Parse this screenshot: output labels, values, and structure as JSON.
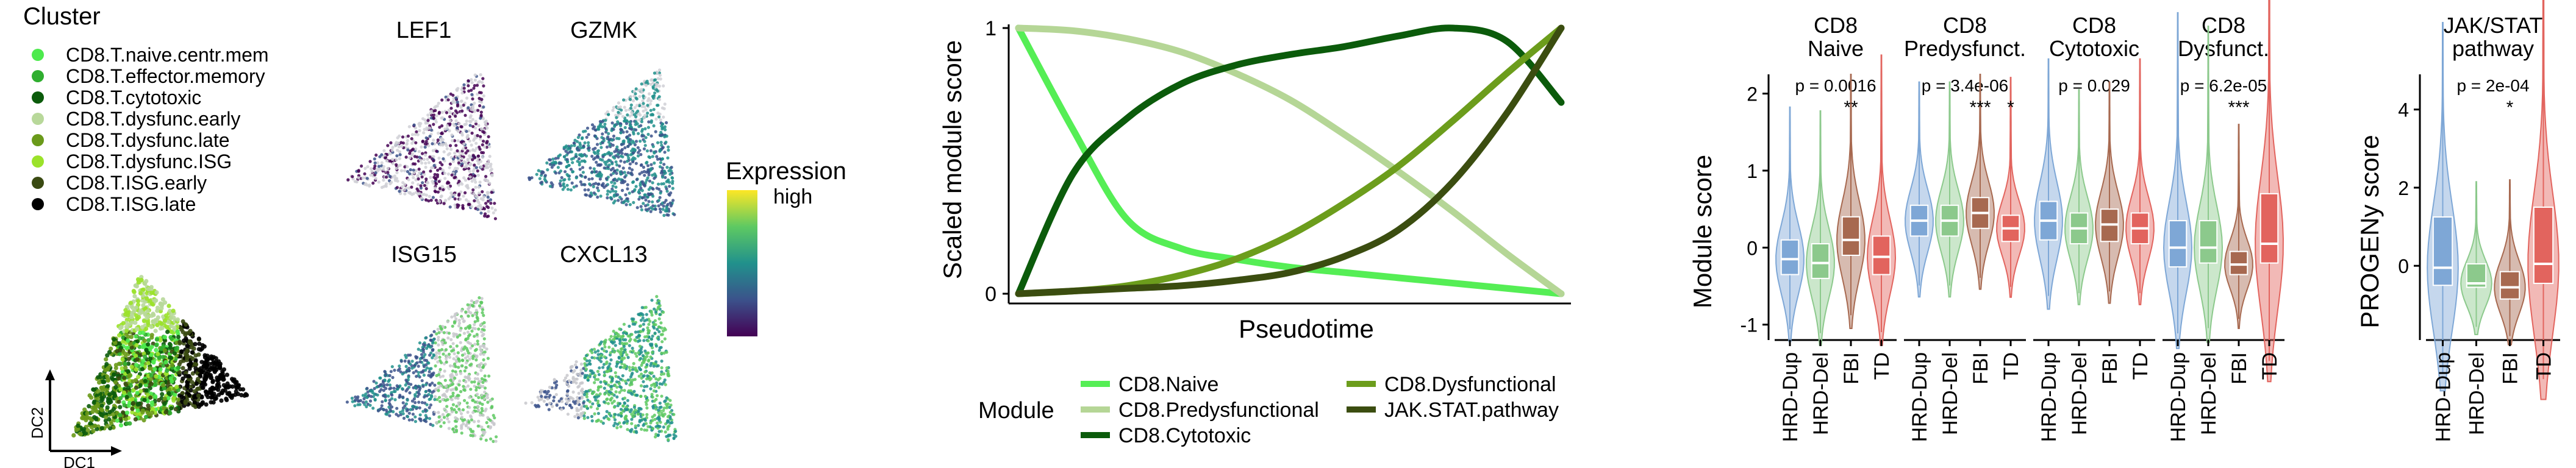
{
  "chart_data": [
    {
      "type": "scatter",
      "panel": "diffusion-map",
      "xlabel": "DC1",
      "ylabel": "DC2",
      "legend": {
        "title": "Cluster",
        "position": "top-left",
        "items": [
          {
            "label": "CD8.T.naive.centr.mem",
            "color": "#4dea4d"
          },
          {
            "label": "CD8.T.effector.memory",
            "color": "#2fae2f"
          },
          {
            "label": "CD8.T.cytotoxic",
            "color": "#0b5b0b"
          },
          {
            "label": "CD8.T.dysfunc.early",
            "color": "#b8d89a"
          },
          {
            "label": "CD8.T.dysfunc.late",
            "color": "#6a9a1a"
          },
          {
            "label": "CD8.T.dysfunc.ISG",
            "color": "#9be22a"
          },
          {
            "label": "CD8.T.ISG.early",
            "color": "#3a4a12"
          },
          {
            "label": "CD8.T.ISG.late",
            "color": "#000000"
          }
        ]
      }
    },
    {
      "type": "scatter",
      "panel": "feature-expression",
      "genes": [
        "LEF1",
        "GZMK",
        "ISG15",
        "CXCL13"
      ],
      "colorbar": {
        "title": "Expression",
        "high_label": "high",
        "colors": [
          "#440154",
          "#3b528b",
          "#21918c",
          "#5ec962",
          "#fde725"
        ]
      }
    },
    {
      "type": "line",
      "panel": "pseudotime",
      "xlabel": "Pseudotime",
      "ylabel": "Scaled module score",
      "xlim": [
        0,
        1
      ],
      "ylim": [
        0,
        1
      ],
      "yticks": [
        0,
        1
      ],
      "x": [
        0,
        0.1,
        0.2,
        0.3,
        0.4,
        0.5,
        0.6,
        0.7,
        0.8,
        0.9,
        1.0
      ],
      "series": [
        {
          "name": "CD8.Naive",
          "color": "#55ee55",
          "values": [
            1.0,
            0.62,
            0.28,
            0.17,
            0.13,
            0.1,
            0.08,
            0.06,
            0.04,
            0.02,
            0.0
          ]
        },
        {
          "name": "CD8.Predysfunctional",
          "color": "#b5d696",
          "values": [
            1.0,
            0.99,
            0.96,
            0.91,
            0.83,
            0.73,
            0.6,
            0.46,
            0.31,
            0.15,
            0.0
          ]
        },
        {
          "name": "CD8.Cytotoxic",
          "color": "#0b5b0b",
          "values": [
            0.0,
            0.45,
            0.66,
            0.79,
            0.86,
            0.9,
            0.93,
            0.97,
            1.0,
            0.95,
            0.72
          ]
        },
        {
          "name": "CD8.Dysfunctional",
          "color": "#6c9d1c",
          "values": [
            0.0,
            0.01,
            0.03,
            0.07,
            0.13,
            0.22,
            0.34,
            0.48,
            0.65,
            0.83,
            1.0
          ]
        },
        {
          "name": "JAK.STAT.pathway",
          "color": "#3b4d10",
          "values": [
            0.0,
            0.01,
            0.02,
            0.03,
            0.05,
            0.08,
            0.14,
            0.24,
            0.42,
            0.68,
            1.0
          ]
        }
      ],
      "legend": {
        "title": "Module",
        "position": "bottom"
      }
    },
    {
      "type": "violin",
      "panel": "module-score-violins",
      "ylabel": "Module score",
      "ylim": [
        -1.2,
        2.25
      ],
      "yticks": [
        -1,
        0,
        1,
        2
      ],
      "categories": [
        "HRD-Dup",
        "HRD-Del",
        "FBI",
        "TD"
      ],
      "category_colors": [
        "#7ea7d6",
        "#8cc98c",
        "#a76950",
        "#e2645e"
      ],
      "facets": [
        {
          "title": [
            "CD8",
            "Naive"
          ],
          "p_value": "p = 0.0016",
          "significance": [
            "",
            "",
            "**",
            ""
          ],
          "medians": [
            -0.15,
            -0.2,
            0.1,
            -0.12
          ],
          "q1": [
            -0.35,
            -0.4,
            -0.1,
            -0.35
          ],
          "q3": [
            0.1,
            0.05,
            0.4,
            0.15
          ]
        },
        {
          "title": [
            "CD8",
            "Predysfunct."
          ],
          "p_value": "p = 3.4e-06",
          "significance": [
            "",
            "",
            "***",
            "*"
          ],
          "medians": [
            0.35,
            0.35,
            0.45,
            0.25
          ],
          "q1": [
            0.15,
            0.15,
            0.25,
            0.08
          ],
          "q3": [
            0.55,
            0.55,
            0.65,
            0.42
          ]
        },
        {
          "title": [
            "CD8",
            "Cytotoxic"
          ],
          "p_value": "p = 0.029",
          "significance": [
            "",
            "",
            "",
            ""
          ],
          "medians": [
            0.35,
            0.25,
            0.3,
            0.25
          ],
          "q1": [
            0.1,
            0.05,
            0.08,
            0.05
          ],
          "q3": [
            0.6,
            0.45,
            0.5,
            0.45
          ]
        },
        {
          "title": [
            "CD8",
            "Dysfunct."
          ],
          "p_value": "p = 6.2e-05",
          "significance": [
            "",
            "",
            "***",
            ""
          ],
          "medians": [
            0.0,
            0.0,
            -0.22,
            0.05
          ],
          "q1": [
            -0.25,
            -0.2,
            -0.35,
            -0.2
          ],
          "q3": [
            0.35,
            0.35,
            -0.05,
            0.7
          ]
        }
      ]
    },
    {
      "type": "violin",
      "panel": "progeny-violin",
      "ylabel": "PROGENy score",
      "ylim": [
        -1.9,
        4.9
      ],
      "yticks": [
        0,
        2,
        4
      ],
      "categories": [
        "HRD-Dup",
        "HRD-Del",
        "FBI",
        "TD"
      ],
      "category_colors": [
        "#7ea7d6",
        "#8cc98c",
        "#a76950",
        "#e2645e"
      ],
      "facets": [
        {
          "title": [
            "JAK/STAT",
            "pathway"
          ],
          "p_value": "p = 2e-04",
          "significance": [
            "",
            "",
            "*",
            ""
          ],
          "medians": [
            -0.05,
            -0.45,
            -0.55,
            0.05
          ],
          "q1": [
            -0.5,
            -0.55,
            -0.85,
            -0.45
          ],
          "q3": [
            1.25,
            0.05,
            -0.15,
            1.5
          ]
        }
      ]
    }
  ]
}
